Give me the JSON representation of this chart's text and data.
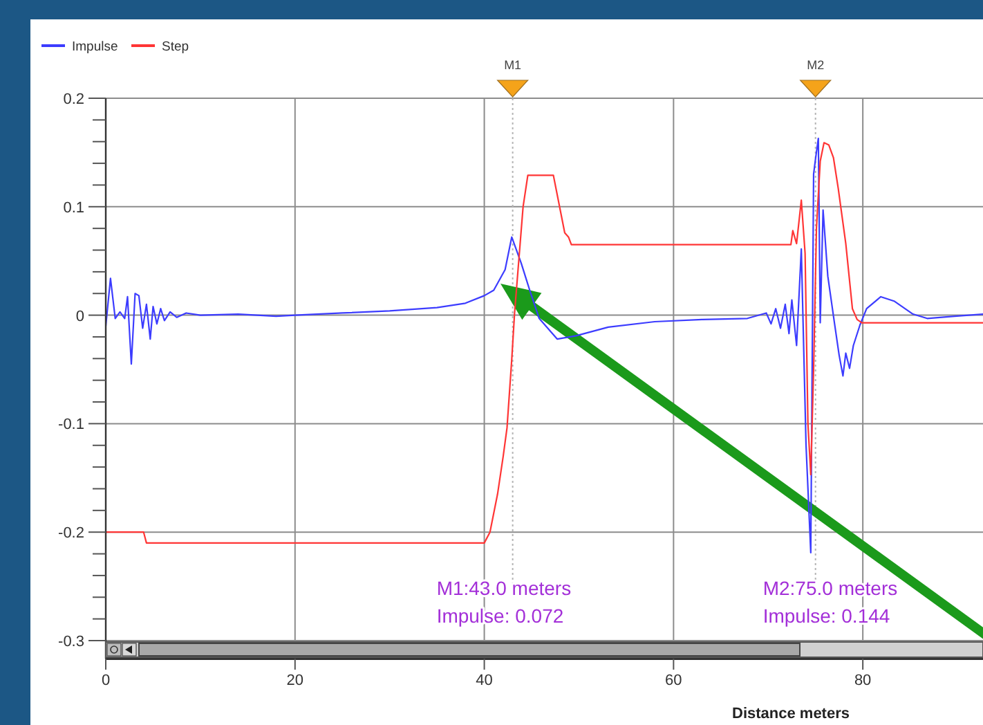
{
  "chart_data": {
    "type": "line",
    "xlabel": "Distance meters",
    "xlim": [
      0,
      92.7
    ],
    "xticks": [
      0,
      20,
      40,
      60,
      80
    ],
    "ylim": [
      -0.3,
      0.2
    ],
    "yticks": [
      -0.3,
      {
        "value": -0.28,
        "label": null
      },
      {
        "value": -0.26,
        "label": null
      },
      {
        "value": -0.24,
        "label": null
      },
      {
        "value": -0.22,
        "label": null
      },
      -0.2,
      {
        "value": -0.18,
        "label": null
      },
      {
        "value": -0.16,
        "label": null
      },
      {
        "value": -0.14,
        "label": null
      },
      {
        "value": -0.12,
        "label": null
      },
      -0.1,
      {
        "value": -0.08,
        "label": null
      },
      {
        "value": -0.06,
        "label": null
      },
      {
        "value": -0.04,
        "label": null
      },
      {
        "value": -0.02,
        "label": null
      },
      0,
      {
        "value": 0.02,
        "label": null
      },
      {
        "value": 0.04,
        "label": null
      },
      {
        "value": 0.06,
        "label": null
      },
      {
        "value": 0.08,
        "label": null
      },
      0.1,
      {
        "value": 0.12,
        "label": null
      },
      {
        "value": 0.14,
        "label": null
      },
      {
        "value": 0.16,
        "label": null
      },
      {
        "value": 0.18,
        "label": null
      },
      0.2
    ],
    "grid": true,
    "legend": "top left",
    "series": [
      {
        "name": "Impulse",
        "color": "#3c3cff",
        "x": [
          0,
          0.5,
          1.0,
          1.5,
          2.0,
          2.3,
          2.7,
          3.1,
          3.5,
          3.9,
          4.3,
          4.7,
          5.0,
          5.4,
          5.8,
          6.2,
          6.8,
          7.5,
          8.5,
          10,
          14,
          18,
          20,
          25,
          30,
          35,
          38,
          40,
          41,
          42.2,
          42.9,
          43.9,
          44.8,
          45.8,
          47.7,
          49.7,
          53.1,
          58,
          63,
          67.8,
          69.8,
          70.3,
          70.8,
          71.3,
          71.8,
          72.2,
          72.5,
          73.0,
          73.5,
          74.0,
          74.5,
          74.8,
          75.0,
          75.3,
          75.5,
          75.8,
          76.3,
          77.0,
          77.5,
          77.9,
          78.2,
          78.6,
          79.0,
          79.7,
          80.4,
          81.9,
          83.3,
          85.3,
          86.8,
          89.7,
          92.7
        ],
        "values": [
          -0.01,
          0.034,
          -0.003,
          0.003,
          -0.003,
          0.017,
          -0.045,
          0.02,
          0.018,
          -0.012,
          0.01,
          -0.022,
          0.008,
          -0.008,
          0.006,
          -0.005,
          0.003,
          -0.002,
          0.002,
          0,
          0.001,
          -0.001,
          0,
          0.002,
          0.004,
          0.007,
          0.011,
          0.018,
          0.023,
          0.042,
          0.072,
          0.048,
          0.023,
          -0.003,
          -0.022,
          -0.019,
          -0.011,
          -0.006,
          -0.004,
          -0.003,
          0.002,
          -0.008,
          0.006,
          -0.012,
          0.01,
          -0.017,
          0.014,
          -0.028,
          0.061,
          -0.12,
          -0.219,
          0.13,
          0.144,
          0.163,
          -0.007,
          0.097,
          0.036,
          -0.007,
          -0.037,
          -0.056,
          -0.035,
          -0.049,
          -0.028,
          -0.009,
          0.006,
          0.017,
          0.013,
          0.001,
          -0.003,
          -0.001,
          0.001
        ]
      },
      {
        "name": "Step",
        "color": "#ff3535",
        "x": [
          0,
          4.0,
          4.3,
          40.0,
          40.6,
          41.4,
          42.0,
          42.4,
          42.9,
          43.2,
          44.1,
          44.6,
          47.3,
          48.5,
          48.9,
          49.2,
          72.4,
          72.6,
          73.0,
          73.5,
          73.9,
          74.2,
          74.5,
          74.8,
          75.1,
          75.5,
          75.9,
          76.4,
          76.9,
          77.4,
          78.2,
          78.9,
          79.4,
          79.9,
          92.7
        ],
        "values": [
          -0.2,
          -0.2,
          -0.21,
          -0.21,
          -0.2,
          -0.165,
          -0.13,
          -0.104,
          -0.041,
          0.002,
          0.1,
          0.129,
          0.129,
          0.076,
          0.072,
          0.065,
          0.065,
          0.078,
          0.066,
          0.106,
          0.057,
          -0.1,
          -0.147,
          -0.05,
          0.08,
          0.142,
          0.159,
          0.157,
          0.145,
          0.117,
          0.066,
          0.006,
          -0.004,
          -0.007,
          -0.007
        ]
      }
    ],
    "ref_lines": [
      {
        "axis": "x",
        "value": 43,
        "label": "M1",
        "color": "#b4b4b4",
        "line_style": "dotted"
      },
      {
        "axis": "x",
        "value": 75,
        "label": "M2",
        "color": "#b4b4b4",
        "line_style": "dotted"
      }
    ],
    "annotations": [
      "M1:43.0 meters",
      "Impulse: 0.072",
      "M2:75.0 meters",
      "Impulse: 0.144"
    ]
  }
}
